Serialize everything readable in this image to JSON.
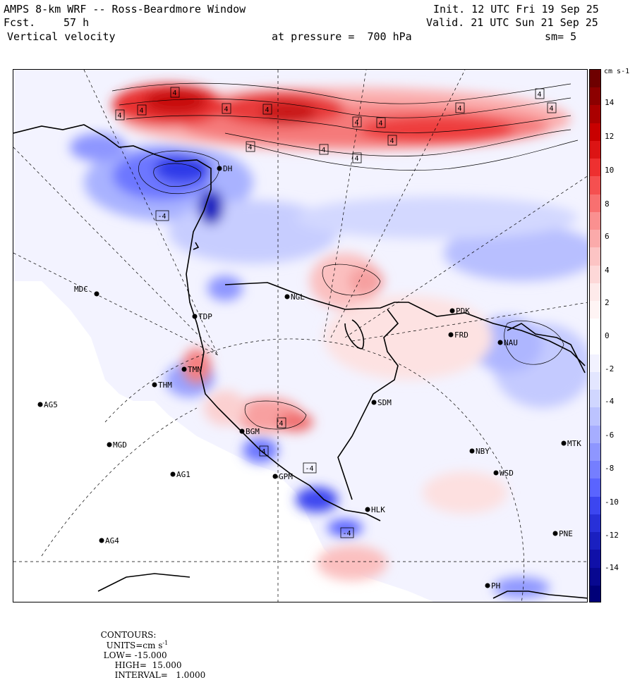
{
  "header": {
    "title": "AMPS 8-km WRF -- Ross-Beardmore Window",
    "forecast_label": "Fcst.",
    "forecast_hours": "57 h",
    "variable": "Vertical velocity",
    "init": "Init. 12 UTC Fri 19 Sep 25",
    "valid": "Valid. 21 UTC Sun 21 Sep 25",
    "pressure": "at pressure =  700 hPa",
    "smoothing": "sm= 5"
  },
  "colorbar": {
    "unit": "cm s-1",
    "ticks": [
      "14",
      "12",
      "10",
      "8",
      "6",
      "4",
      "2",
      "0",
      "-2",
      "-4",
      "-6",
      "-8",
      "-10",
      "-12",
      "-14"
    ],
    "colors": [
      "#6e0000",
      "#8c0000",
      "#aa0000",
      "#c80000",
      "#dc1414",
      "#ee3030",
      "#f55050",
      "#f87070",
      "#fa9090",
      "#fbaaaa",
      "#fcc4c4",
      "#fdd8d8",
      "#feeaea",
      "#fff4f4",
      "#ffffff",
      "#ffffff",
      "#f2f2ff",
      "#e3e6ff",
      "#d0d6ff",
      "#bcc3ff",
      "#a6adff",
      "#8e96ff",
      "#757eff",
      "#5a64ff",
      "#3c46f0",
      "#2830d8",
      "#1a20c0",
      "#1010a8",
      "#080890",
      "#000078"
    ]
  },
  "stations": [
    {
      "id": "MDC",
      "label": "MDC"
    },
    {
      "id": "NGL",
      "label": "NGL"
    },
    {
      "id": "PDK",
      "label": "PDK"
    },
    {
      "id": "FRD",
      "label": "FRD"
    },
    {
      "id": "NAU",
      "label": "NAU"
    },
    {
      "id": "SDM",
      "label": "SDM"
    },
    {
      "id": "AG5",
      "label": "AG5"
    },
    {
      "id": "MGD",
      "label": "MGD"
    },
    {
      "id": "AG1",
      "label": "AG1"
    },
    {
      "id": "AG4",
      "label": "AG4"
    },
    {
      "id": "NBY",
      "label": "NBY"
    },
    {
      "id": "MTK",
      "label": "MTK"
    },
    {
      "id": "WSD",
      "label": "WSD"
    },
    {
      "id": "PNE",
      "label": "PNE"
    },
    {
      "id": "HLK",
      "label": "HLK"
    },
    {
      "id": "GPM",
      "label": "GPM"
    },
    {
      "id": "BGM",
      "label": "BGM"
    },
    {
      "id": "THM",
      "label": "THM"
    },
    {
      "id": "TMN",
      "label": "TMN"
    },
    {
      "id": "TDP",
      "label": "TDP"
    },
    {
      "id": "DH",
      "label": "DH"
    },
    {
      "id": "PH",
      "label": "PH"
    }
  ],
  "hl_labels": [
    "4",
    "-4"
  ],
  "footer": {
    "contours_label": "CONTOURS:",
    "units": "UNITS=cm s",
    "units_sup": "-1",
    "low": "LOW= -15.000",
    "high": "HIGH=  15.000",
    "interval": "INTERVAL=   1.0000"
  }
}
